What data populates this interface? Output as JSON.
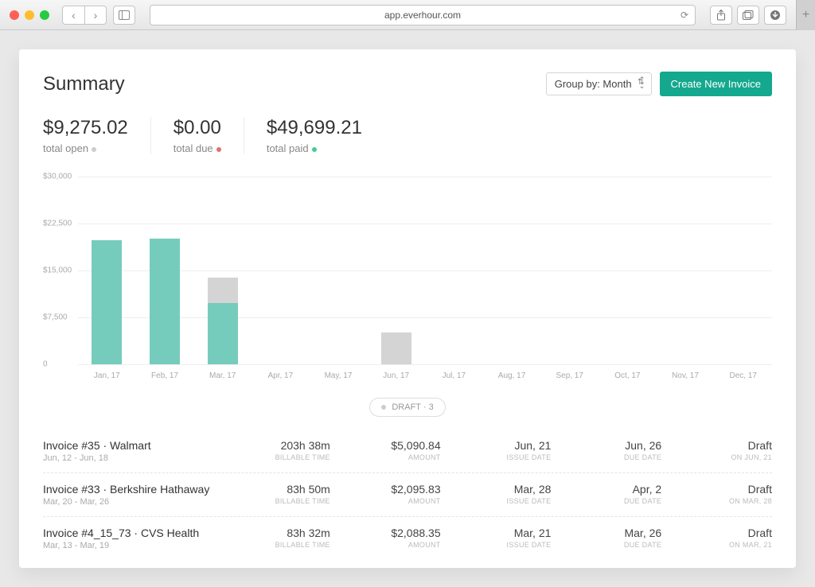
{
  "browser": {
    "url": "app.everhour.com"
  },
  "header": {
    "title": "Summary",
    "group_by_label": "Group by: Month",
    "create_btn": "Create New Invoice"
  },
  "colors": {
    "primary": "#14a88e",
    "bar_fill": "#76ccbc",
    "bar_draft": "#d4d4d4",
    "grid": "#eeeeee",
    "open_dot": "#cccccc",
    "due_dot": "#e36f6f",
    "paid_dot": "#3ecf8e"
  },
  "metrics": [
    {
      "value": "$9,275.02",
      "label": "total open",
      "dot": "open_dot"
    },
    {
      "value": "$0.00",
      "label": "total due",
      "dot": "due_dot"
    },
    {
      "value": "$49,699.21",
      "label": "total paid",
      "dot": "paid_dot"
    }
  ],
  "chart": {
    "type": "bar",
    "ylim": [
      0,
      30000
    ],
    "yticks": [
      {
        "v": 0,
        "label": "0"
      },
      {
        "v": 7500,
        "label": "$7,500"
      },
      {
        "v": 15000,
        "label": "$15,000"
      },
      {
        "v": 22500,
        "label": "$22,500"
      },
      {
        "v": 30000,
        "label": "$30,000"
      }
    ],
    "categories": [
      "Jan, 17",
      "Feb, 17",
      "Mar, 17",
      "Apr, 17",
      "May, 17",
      "Jun, 17",
      "Jul, 17",
      "Aug, 17",
      "Sep, 17",
      "Oct, 17",
      "Nov, 17",
      "Dec, 17"
    ],
    "series": [
      {
        "paid": 19800,
        "draft": 0
      },
      {
        "paid": 20100,
        "draft": 0
      },
      {
        "paid": 9800,
        "draft": 4100
      },
      {
        "paid": 0,
        "draft": 0
      },
      {
        "paid": 0,
        "draft": 0
      },
      {
        "paid": 0,
        "draft": 5100
      },
      {
        "paid": 0,
        "draft": 0
      },
      {
        "paid": 0,
        "draft": 0
      },
      {
        "paid": 0,
        "draft": 0
      },
      {
        "paid": 0,
        "draft": 0
      },
      {
        "paid": 0,
        "draft": 0
      },
      {
        "paid": 0,
        "draft": 0
      }
    ]
  },
  "pill": {
    "dot": "open_dot",
    "label": "DRAFT · 3"
  },
  "table": {
    "columns": [
      "BILLABLE TIME",
      "AMOUNT",
      "ISSUE DATE",
      "DUE DATE",
      ""
    ],
    "rows": [
      {
        "name": "Invoice #35 · Walmart",
        "range": "Jun, 12 - Jun, 18",
        "time": "203h 38m",
        "amount": "$5,090.84",
        "issue": "Jun, 21",
        "due": "Jun, 26",
        "status": "Draft",
        "status_sub": "ON JUN, 21"
      },
      {
        "name": "Invoice #33 · Berkshire Hathaway",
        "range": "Mar, 20 - Mar, 26",
        "time": "83h 50m",
        "amount": "$2,095.83",
        "issue": "Mar, 28",
        "due": "Apr, 2",
        "status": "Draft",
        "status_sub": "ON MAR, 28"
      },
      {
        "name": "Invoice #4_15_73 · CVS Health",
        "range": "Mar, 13 - Mar, 19",
        "time": "83h 32m",
        "amount": "$2,088.35",
        "issue": "Mar, 21",
        "due": "Mar, 26",
        "status": "Draft",
        "status_sub": "ON MAR, 21"
      }
    ]
  }
}
